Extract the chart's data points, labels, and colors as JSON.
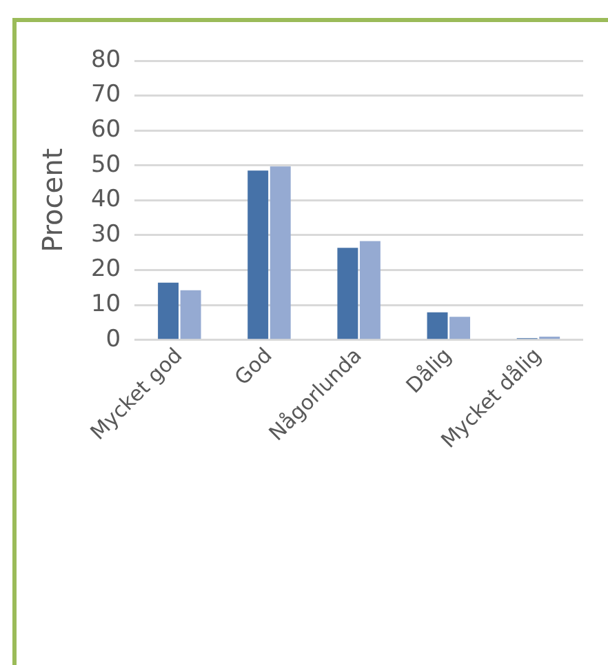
{
  "chart_data": {
    "type": "bar",
    "ylabel": "Procent",
    "categories": [
      "Mycket god",
      "God",
      "Någorlunda",
      "Dålig",
      "Mycket dålig"
    ],
    "series": [
      {
        "color": "#4672a8",
        "values": [
          16.4,
          48.5,
          26.4,
          7.9,
          0.5
        ]
      },
      {
        "color": "#95aad2",
        "values": [
          14.2,
          49.7,
          28.3,
          6.6,
          0.9
        ]
      }
    ],
    "ylim": [
      0,
      80
    ],
    "yticks": [
      0,
      10,
      20,
      30,
      40,
      50,
      60,
      70,
      80
    ],
    "grid": "y",
    "legend": false
  }
}
